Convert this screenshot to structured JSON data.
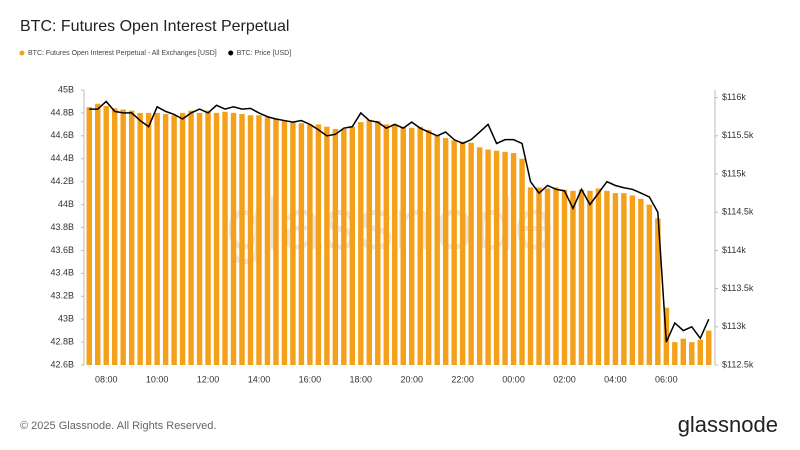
{
  "chart_data": {
    "type": "bar_line",
    "title": "BTC: Futures Open Interest Perpetual",
    "watermark": "glassnode",
    "categories": [
      null,
      null,
      "08:00",
      null,
      null,
      null,
      null,
      null,
      "10:00",
      null,
      null,
      null,
      null,
      null,
      "12:00",
      null,
      null,
      null,
      null,
      null,
      "14:00",
      null,
      null,
      null,
      null,
      null,
      "16:00",
      null,
      null,
      null,
      null,
      null,
      "18:00",
      null,
      null,
      null,
      null,
      null,
      "20:00",
      null,
      null,
      null,
      null,
      null,
      "22:00",
      null,
      null,
      null,
      null,
      null,
      "00:00",
      null,
      null,
      null,
      null,
      null,
      "02:00",
      null,
      null,
      null,
      null,
      null,
      "04:00",
      null,
      null,
      null,
      null,
      null,
      "06:00",
      null,
      null,
      null,
      null,
      null
    ],
    "series": [
      {
        "name": "BTC: Futures Open Interest Perpetual - All Exchanges [USD]",
        "type": "bar",
        "color": "#f5a01a",
        "values": [
          44.85,
          44.88,
          44.86,
          44.84,
          44.83,
          44.82,
          44.8,
          44.8,
          44.8,
          44.79,
          44.78,
          44.8,
          44.82,
          44.8,
          44.82,
          44.8,
          44.81,
          44.8,
          44.79,
          44.78,
          44.78,
          44.76,
          44.75,
          44.73,
          44.72,
          44.71,
          44.7,
          44.7,
          44.68,
          44.66,
          44.66,
          44.68,
          44.72,
          44.74,
          44.73,
          44.7,
          44.7,
          44.68,
          44.67,
          44.68,
          44.65,
          44.6,
          44.58,
          44.56,
          44.55,
          44.54,
          44.5,
          44.48,
          44.47,
          44.46,
          44.45,
          44.4,
          44.15,
          44.15,
          44.14,
          44.15,
          44.13,
          44.12,
          44.13,
          44.12,
          44.14,
          44.12,
          44.1,
          44.1,
          44.08,
          44.05,
          44.0,
          43.88,
          43.1,
          42.8,
          42.83,
          42.8,
          42.82,
          42.9
        ]
      },
      {
        "name": "BTC: Price [USD]",
        "type": "line",
        "axis": "y2",
        "color": "#000000",
        "values": [
          115.85,
          115.85,
          115.95,
          115.82,
          115.8,
          115.8,
          115.7,
          115.62,
          115.88,
          115.82,
          115.78,
          115.72,
          115.8,
          115.85,
          115.8,
          115.9,
          115.85,
          115.88,
          115.85,
          115.86,
          115.8,
          115.75,
          115.72,
          115.7,
          115.68,
          115.7,
          115.65,
          115.58,
          115.5,
          115.52,
          115.6,
          115.62,
          115.8,
          115.7,
          115.68,
          115.6,
          115.65,
          115.6,
          115.68,
          115.6,
          115.55,
          115.5,
          115.55,
          115.45,
          115.4,
          115.45,
          115.55,
          115.65,
          115.4,
          115.45,
          115.45,
          115.4,
          114.9,
          114.75,
          114.85,
          114.8,
          114.78,
          114.55,
          114.8,
          114.6,
          114.75,
          114.9,
          114.85,
          114.82,
          114.8,
          114.75,
          114.7,
          114.5,
          112.8,
          113.05,
          112.95,
          113.0,
          112.85,
          113.1
        ]
      }
    ],
    "ylim": [
      42.6,
      45
    ],
    "yticks": [
      {
        "value": 42.6,
        "label": "42.6B"
      },
      {
        "value": 42.8,
        "label": "42.8B"
      },
      {
        "value": 43,
        "label": "43B"
      },
      {
        "value": 43.2,
        "label": "43.2B"
      },
      {
        "value": 43.4,
        "label": "43.4B"
      },
      {
        "value": 43.6,
        "label": "43.6B"
      },
      {
        "value": 43.8,
        "label": "43.8B"
      },
      {
        "value": 44,
        "label": "44B"
      },
      {
        "value": 44.2,
        "label": "44.2B"
      },
      {
        "value": 44.4,
        "label": "44.4B"
      },
      {
        "value": 44.6,
        "label": "44.6B"
      },
      {
        "value": 44.8,
        "label": "44.8B"
      },
      {
        "value": 45,
        "label": "45B"
      }
    ],
    "y2lim": [
      112.5,
      116.1
    ],
    "y2ticks": [
      {
        "value": 112.5,
        "label": "$112.5k"
      },
      {
        "value": 113,
        "label": "$113k"
      },
      {
        "value": 113.5,
        "label": "$113.5k"
      },
      {
        "value": 114,
        "label": "$114k"
      },
      {
        "value": 114.5,
        "label": "$114.5k"
      },
      {
        "value": 115,
        "label": "$115k"
      },
      {
        "value": 115.5,
        "label": "$115.5k"
      },
      {
        "value": 116,
        "label": "$116k"
      }
    ],
    "grid": false
  },
  "footer": "© 2025 Glassnode. All Rights Reserved.",
  "logo": "glassnode"
}
